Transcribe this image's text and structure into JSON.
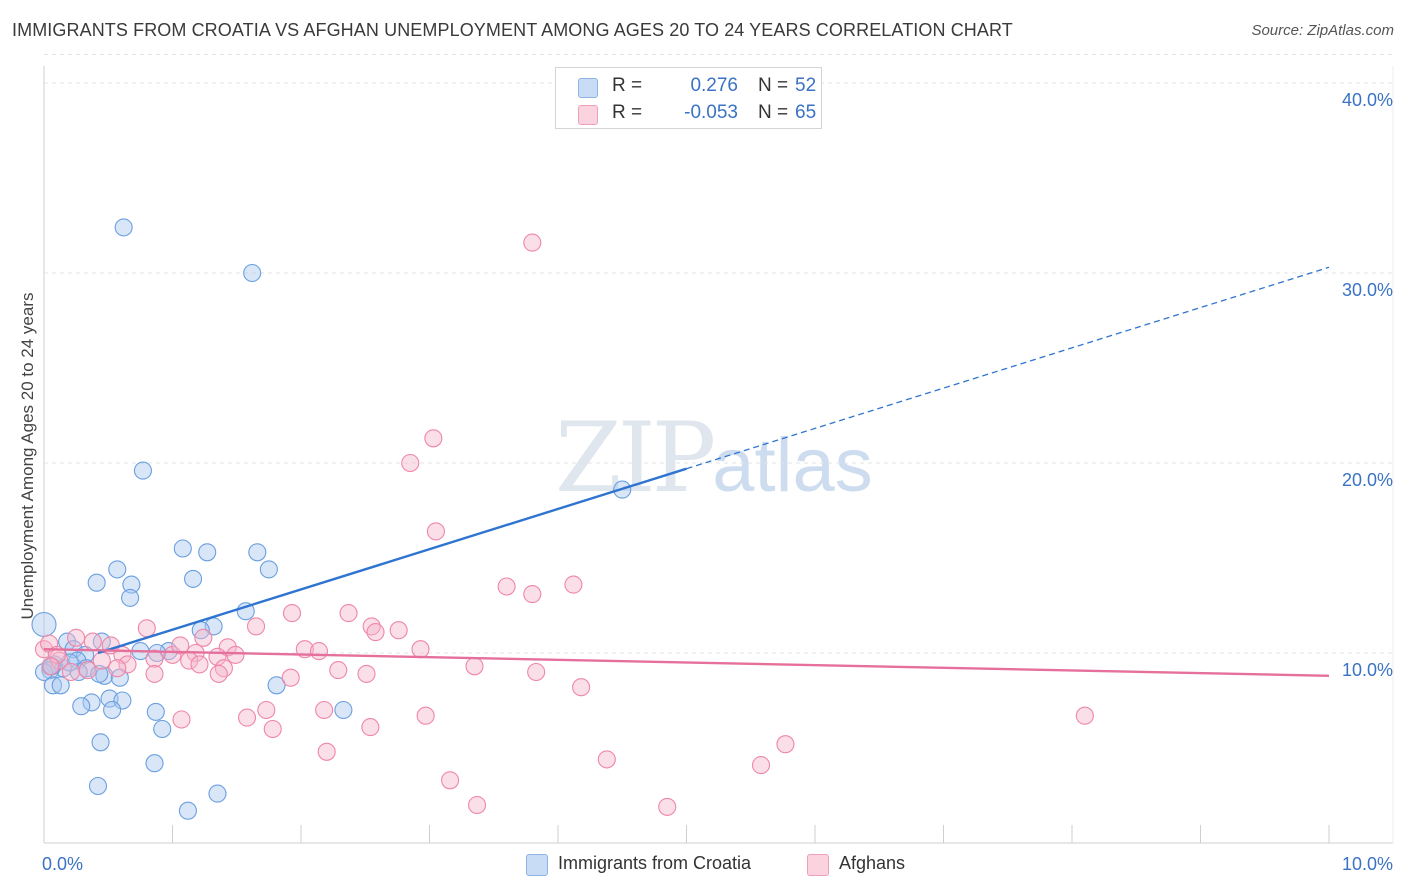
{
  "title": "IMMIGRANTS FROM CROATIA VS AFGHAN UNEMPLOYMENT AMONG AGES 20 TO 24 YEARS CORRELATION CHART",
  "source": "Source: ZipAtlas.com",
  "watermark": {
    "zip": "ZIP",
    "atlas": "atlas"
  },
  "legend": {
    "r_label": "R =",
    "n_label": "N =",
    "rows": [
      {
        "r": "0.276",
        "n": "52",
        "color": "#a9c8ef"
      },
      {
        "r": "-0.053",
        "n": "65",
        "color": "#f5b8cc"
      }
    ]
  },
  "bottom_legend": [
    {
      "label": "Immigrants from Croatia",
      "color": "#a9c8ef"
    },
    {
      "label": "Afghans",
      "color": "#f5b8cc"
    }
  ],
  "chart_data": {
    "type": "scatter",
    "xlabel": "",
    "ylabel": "Unemployment Among Ages 20 to 24 years",
    "xlim": [
      0,
      10.5
    ],
    "ylim": [
      0,
      41.5
    ],
    "x_tick_labels": [
      "0.0%",
      "10.0%"
    ],
    "y_tick_labels": [
      "10.0%",
      "20.0%",
      "30.0%",
      "40.0%"
    ],
    "y_ticks": [
      10,
      20,
      30,
      40
    ],
    "series": [
      {
        "name": "Immigrants from Croatia",
        "color": "#6a9fe0",
        "fill": "#a9c8ef",
        "points": [
          [
            0.62,
            32.4
          ],
          [
            1.62,
            30.0
          ],
          [
            0.77,
            19.6
          ],
          [
            4.5,
            18.6
          ],
          [
            1.08,
            15.5
          ],
          [
            1.27,
            15.3
          ],
          [
            1.66,
            15.3
          ],
          [
            0.57,
            14.4
          ],
          [
            1.75,
            14.4
          ],
          [
            0.41,
            13.7
          ],
          [
            0.68,
            13.6
          ],
          [
            1.16,
            13.9
          ],
          [
            0.67,
            12.9
          ],
          [
            1.57,
            12.2
          ],
          [
            0.0,
            11.5
          ],
          [
            1.32,
            11.4
          ],
          [
            1.22,
            11.2
          ],
          [
            0.18,
            10.6
          ],
          [
            0.45,
            10.6
          ],
          [
            0.23,
            10.2
          ],
          [
            0.75,
            10.1
          ],
          [
            0.97,
            10.1
          ],
          [
            0.88,
            10.0
          ],
          [
            0.32,
            9.9
          ],
          [
            0.26,
            9.6
          ],
          [
            0.08,
            9.4
          ],
          [
            0.15,
            9.2
          ],
          [
            0.33,
            9.2
          ],
          [
            0.05,
            9.1
          ],
          [
            0.0,
            9.0
          ],
          [
            0.27,
            9.0
          ],
          [
            0.47,
            8.8
          ],
          [
            0.43,
            8.9
          ],
          [
            0.59,
            8.7
          ],
          [
            0.07,
            8.3
          ],
          [
            0.13,
            8.3
          ],
          [
            1.81,
            8.3
          ],
          [
            0.51,
            7.6
          ],
          [
            0.61,
            7.5
          ],
          [
            0.37,
            7.4
          ],
          [
            0.29,
            7.2
          ],
          [
            0.53,
            7.0
          ],
          [
            2.33,
            7.0
          ],
          [
            0.87,
            6.9
          ],
          [
            0.92,
            6.0
          ],
          [
            0.44,
            5.3
          ],
          [
            0.86,
            4.2
          ],
          [
            0.42,
            3.0
          ],
          [
            1.35,
            2.6
          ],
          [
            1.12,
            1.7
          ],
          [
            0.06,
            9.3
          ],
          [
            0.2,
            9.5
          ]
        ]
      },
      {
        "name": "Afghans",
        "color": "#ef86a8",
        "fill": "#f5b8cc",
        "points": [
          [
            3.8,
            31.6
          ],
          [
            3.03,
            21.3
          ],
          [
            2.85,
            20.0
          ],
          [
            3.05,
            16.4
          ],
          [
            3.6,
            13.5
          ],
          [
            4.12,
            13.6
          ],
          [
            3.8,
            13.1
          ],
          [
            1.93,
            12.1
          ],
          [
            2.37,
            12.1
          ],
          [
            2.55,
            11.4
          ],
          [
            2.76,
            11.2
          ],
          [
            2.58,
            11.1
          ],
          [
            0.8,
            11.3
          ],
          [
            1.65,
            11.4
          ],
          [
            1.24,
            10.8
          ],
          [
            0.38,
            10.6
          ],
          [
            0.0,
            10.2
          ],
          [
            0.52,
            10.4
          ],
          [
            1.43,
            10.3
          ],
          [
            2.03,
            10.2
          ],
          [
            2.14,
            10.1
          ],
          [
            2.93,
            10.2
          ],
          [
            1.18,
            10.0
          ],
          [
            1.49,
            9.9
          ],
          [
            0.61,
            9.9
          ],
          [
            1.0,
            9.9
          ],
          [
            0.86,
            9.7
          ],
          [
            1.13,
            9.6
          ],
          [
            1.35,
            9.8
          ],
          [
            0.12,
            9.6
          ],
          [
            0.65,
            9.4
          ],
          [
            1.21,
            9.4
          ],
          [
            0.57,
            9.2
          ],
          [
            0.34,
            9.1
          ],
          [
            0.21,
            9.0
          ],
          [
            1.4,
            9.2
          ],
          [
            1.36,
            8.9
          ],
          [
            2.29,
            9.1
          ],
          [
            2.51,
            8.9
          ],
          [
            0.86,
            8.9
          ],
          [
            3.35,
            9.3
          ],
          [
            3.83,
            9.0
          ],
          [
            4.18,
            8.2
          ],
          [
            1.92,
            8.7
          ],
          [
            1.73,
            7.0
          ],
          [
            2.18,
            7.0
          ],
          [
            1.58,
            6.6
          ],
          [
            2.97,
            6.7
          ],
          [
            1.07,
            6.5
          ],
          [
            2.54,
            6.1
          ],
          [
            1.78,
            6.0
          ],
          [
            8.1,
            6.7
          ],
          [
            5.77,
            5.2
          ],
          [
            2.2,
            4.8
          ],
          [
            4.38,
            4.4
          ],
          [
            5.58,
            4.1
          ],
          [
            3.16,
            3.3
          ],
          [
            3.37,
            2.0
          ],
          [
            4.85,
            1.9
          ],
          [
            0.04,
            10.5
          ],
          [
            0.25,
            10.8
          ],
          [
            0.1,
            9.9
          ],
          [
            0.45,
            9.6
          ],
          [
            0.05,
            9.3
          ],
          [
            1.06,
            10.4
          ]
        ]
      }
    ],
    "trend_lines": [
      {
        "series": "Immigrants from Croatia",
        "solid": [
          [
            0.42,
            10.0
          ],
          [
            5.0,
            19.7
          ]
        ],
        "dashed": [
          [
            5.0,
            19.7
          ],
          [
            10.0,
            30.3
          ]
        ]
      },
      {
        "series": "Afghans",
        "solid": [
          [
            0.0,
            10.2
          ],
          [
            10.0,
            8.8
          ]
        ]
      }
    ]
  }
}
